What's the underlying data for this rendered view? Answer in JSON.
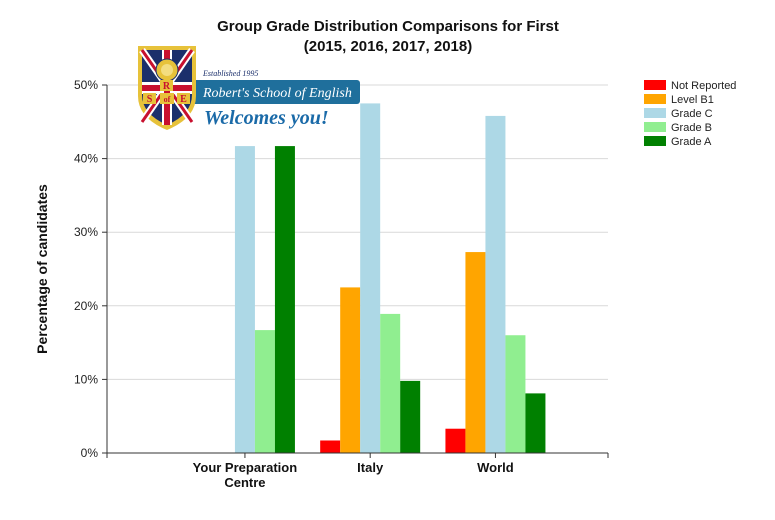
{
  "logo": {
    "established": "Established 1995",
    "school": "Robert's School of English",
    "welcome": "Welcomes you!",
    "letters": [
      "R",
      "S",
      "of",
      "E"
    ],
    "colors": {
      "gold": "#e7c23a",
      "navy": "#1b2f6b",
      "red": "#c8102e",
      "banner": "#1f6f9c"
    }
  },
  "chart_data": {
    "type": "bar",
    "title": "Group Grade Distribution Comparisons for First",
    "subtitle": "(2015, 2016, 2017, 2018)",
    "xlabel": "",
    "ylabel": "Percentage of candidates",
    "ylim": [
      0,
      50
    ],
    "yticks": [
      "0%",
      "10%",
      "20%",
      "30%",
      "40%",
      "50%"
    ],
    "grid": true,
    "legend_position": "right",
    "categories": [
      "Your Preparation Centre",
      "Italy",
      "World"
    ],
    "category_lines": [
      [
        "Your Preparation",
        "Centre"
      ],
      [
        "Italy"
      ],
      [
        "World"
      ]
    ],
    "series": [
      {
        "name": "Not Reported",
        "color": "#ff0000",
        "values": [
          0,
          1.7,
          3.3
        ]
      },
      {
        "name": "Level B1",
        "color": "#ffa500",
        "values": [
          0,
          22.5,
          27.3
        ]
      },
      {
        "name": "Grade C",
        "color": "#add8e6",
        "values": [
          41.7,
          47.5,
          45.8
        ]
      },
      {
        "name": "Grade B",
        "color": "#90ee90",
        "values": [
          16.7,
          18.9,
          16.0
        ]
      },
      {
        "name": "Grade A",
        "color": "#008000",
        "values": [
          41.7,
          9.8,
          8.1
        ]
      }
    ]
  }
}
